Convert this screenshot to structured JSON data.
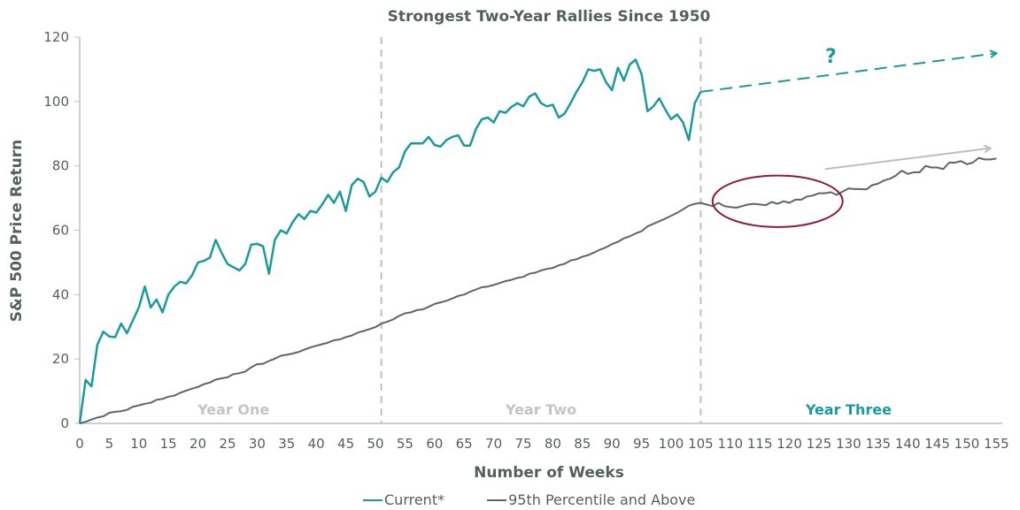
{
  "chart_data": {
    "type": "line",
    "title": "Strongest Two-Year Rallies Since 1950",
    "xlabel": "Number of Weeks",
    "ylabel": "S&P 500 Price Return",
    "xlim": [
      0,
      156
    ],
    "ylim": [
      0,
      120
    ],
    "xticks": [
      0,
      5,
      10,
      15,
      20,
      25,
      30,
      35,
      40,
      45,
      50,
      55,
      60,
      65,
      70,
      75,
      80,
      85,
      90,
      95,
      100,
      105,
      110,
      115,
      120,
      125,
      130,
      135,
      140,
      145,
      150,
      155
    ],
    "yticks": [
      0,
      20,
      40,
      60,
      80,
      100,
      120
    ],
    "grid": false,
    "legend_placement": "bottom",
    "colors": {
      "current": "#1a9aa0",
      "percentile": "#5b6763",
      "highlight": "#8b1a3e",
      "divider": "#c0c0c0",
      "arrow": "#bdbdbd",
      "text": "#555f5b"
    },
    "dividers": [
      51,
      105
    ],
    "regions": [
      {
        "label": "Year One",
        "x": 26,
        "color": "#c4c4c4"
      },
      {
        "label": "Year Two",
        "x": 78,
        "color": "#c4c4c4"
      },
      {
        "label": "Year Three",
        "x": 130,
        "color": "#1a9aa0"
      }
    ],
    "annotations": {
      "question_mark": "?",
      "projection": {
        "from": [
          105,
          103
        ],
        "to": [
          155,
          115
        ]
      },
      "trend_arrow": {
        "from": [
          126,
          79
        ],
        "to": [
          154,
          85.5
        ]
      },
      "highlight_ellipse": {
        "center": [
          118,
          69
        ],
        "span_weeks": 22,
        "span_return": 16
      }
    },
    "series": [
      {
        "name": "Current*",
        "x_start": 0,
        "values": [
          0,
          13.5,
          11.5,
          24.5,
          28.5,
          27,
          26.8,
          31,
          28,
          32,
          36,
          42.5,
          36,
          38.5,
          34.5,
          40,
          42.5,
          44,
          43.5,
          46,
          50,
          50.5,
          51.5,
          57,
          53,
          49.5,
          48.5,
          47.5,
          49.5,
          55.5,
          55.8,
          55,
          46.5,
          57,
          60,
          59,
          62.5,
          65,
          63.5,
          66,
          65.5,
          68,
          71,
          68.5,
          72,
          66,
          74,
          76,
          75,
          70.5,
          72,
          76.3,
          75,
          78,
          79.5,
          84.5,
          87,
          87,
          87,
          89,
          86.5,
          86,
          88,
          89,
          89.5,
          86.3,
          86.3,
          91.5,
          94.5,
          95,
          93.5,
          97,
          96.5,
          98.3,
          99.5,
          98.5,
          101.5,
          102.5,
          99.5,
          98.5,
          99,
          95,
          96.3,
          99.5,
          103,
          106,
          110,
          109.5,
          110,
          106,
          103.5,
          110.5,
          106.5,
          111.5,
          113,
          108.5,
          97,
          98.5,
          101,
          97.5,
          94.5,
          96,
          93.5,
          88,
          99.5,
          103
        ]
      },
      {
        "name": "95th Percentile and Above",
        "x_start": 0,
        "values": [
          0,
          0.5,
          1.2,
          1.8,
          2.2,
          3.3,
          3.6,
          3.8,
          4.2,
          5.2,
          5.6,
          6.1,
          6.4,
          7.3,
          7.6,
          8.3,
          8.6,
          9.5,
          10.2,
          10.8,
          11.3,
          12.2,
          12.7,
          13.6,
          14,
          14.3,
          15.3,
          15.6,
          16.1,
          17.4,
          18.4,
          18.5,
          19.4,
          20.1,
          21,
          21.3,
          21.7,
          22.2,
          22.9,
          23.6,
          24.1,
          24.6,
          25.1,
          25.8,
          26.1,
          26.8,
          27.3,
          28.2,
          28.7,
          29.3,
          29.9,
          31,
          31.6,
          32.3,
          33.4,
          34.2,
          34.5,
          35.2,
          35.4,
          36.2,
          37.1,
          37.6,
          38.1,
          38.8,
          39.6,
          40,
          40.9,
          41.6,
          42.3,
          42.5,
          43,
          43.6,
          44.2,
          44.6,
          45.2,
          45.5,
          46.5,
          46.8,
          47.5,
          48,
          48.3,
          49.1,
          49.6,
          50.6,
          51,
          51.8,
          52.3,
          53.1,
          54,
          54.7,
          55.7,
          56.4,
          57.5,
          58.1,
          59,
          59.7,
          61.2,
          62,
          62.8,
          63.6,
          64.5,
          65.4,
          66.5,
          67.6,
          68.2,
          68.5,
          68,
          67.5,
          68.5,
          67.5,
          67.2,
          67,
          67.5,
          68,
          68.2,
          68,
          67.8,
          68.8,
          68.2,
          69,
          68.5,
          69.5,
          69.5,
          70.5,
          70.8,
          71.5,
          71.5,
          71.8,
          71,
          72,
          73,
          72.8,
          72.8,
          72.7,
          74,
          74.5,
          75.5,
          76,
          77,
          78.5,
          77.5,
          78,
          78,
          80,
          79.5,
          79.5,
          79,
          81,
          81,
          81.5,
          80.5,
          81,
          82.5,
          82,
          82,
          82.3
        ]
      }
    ]
  }
}
